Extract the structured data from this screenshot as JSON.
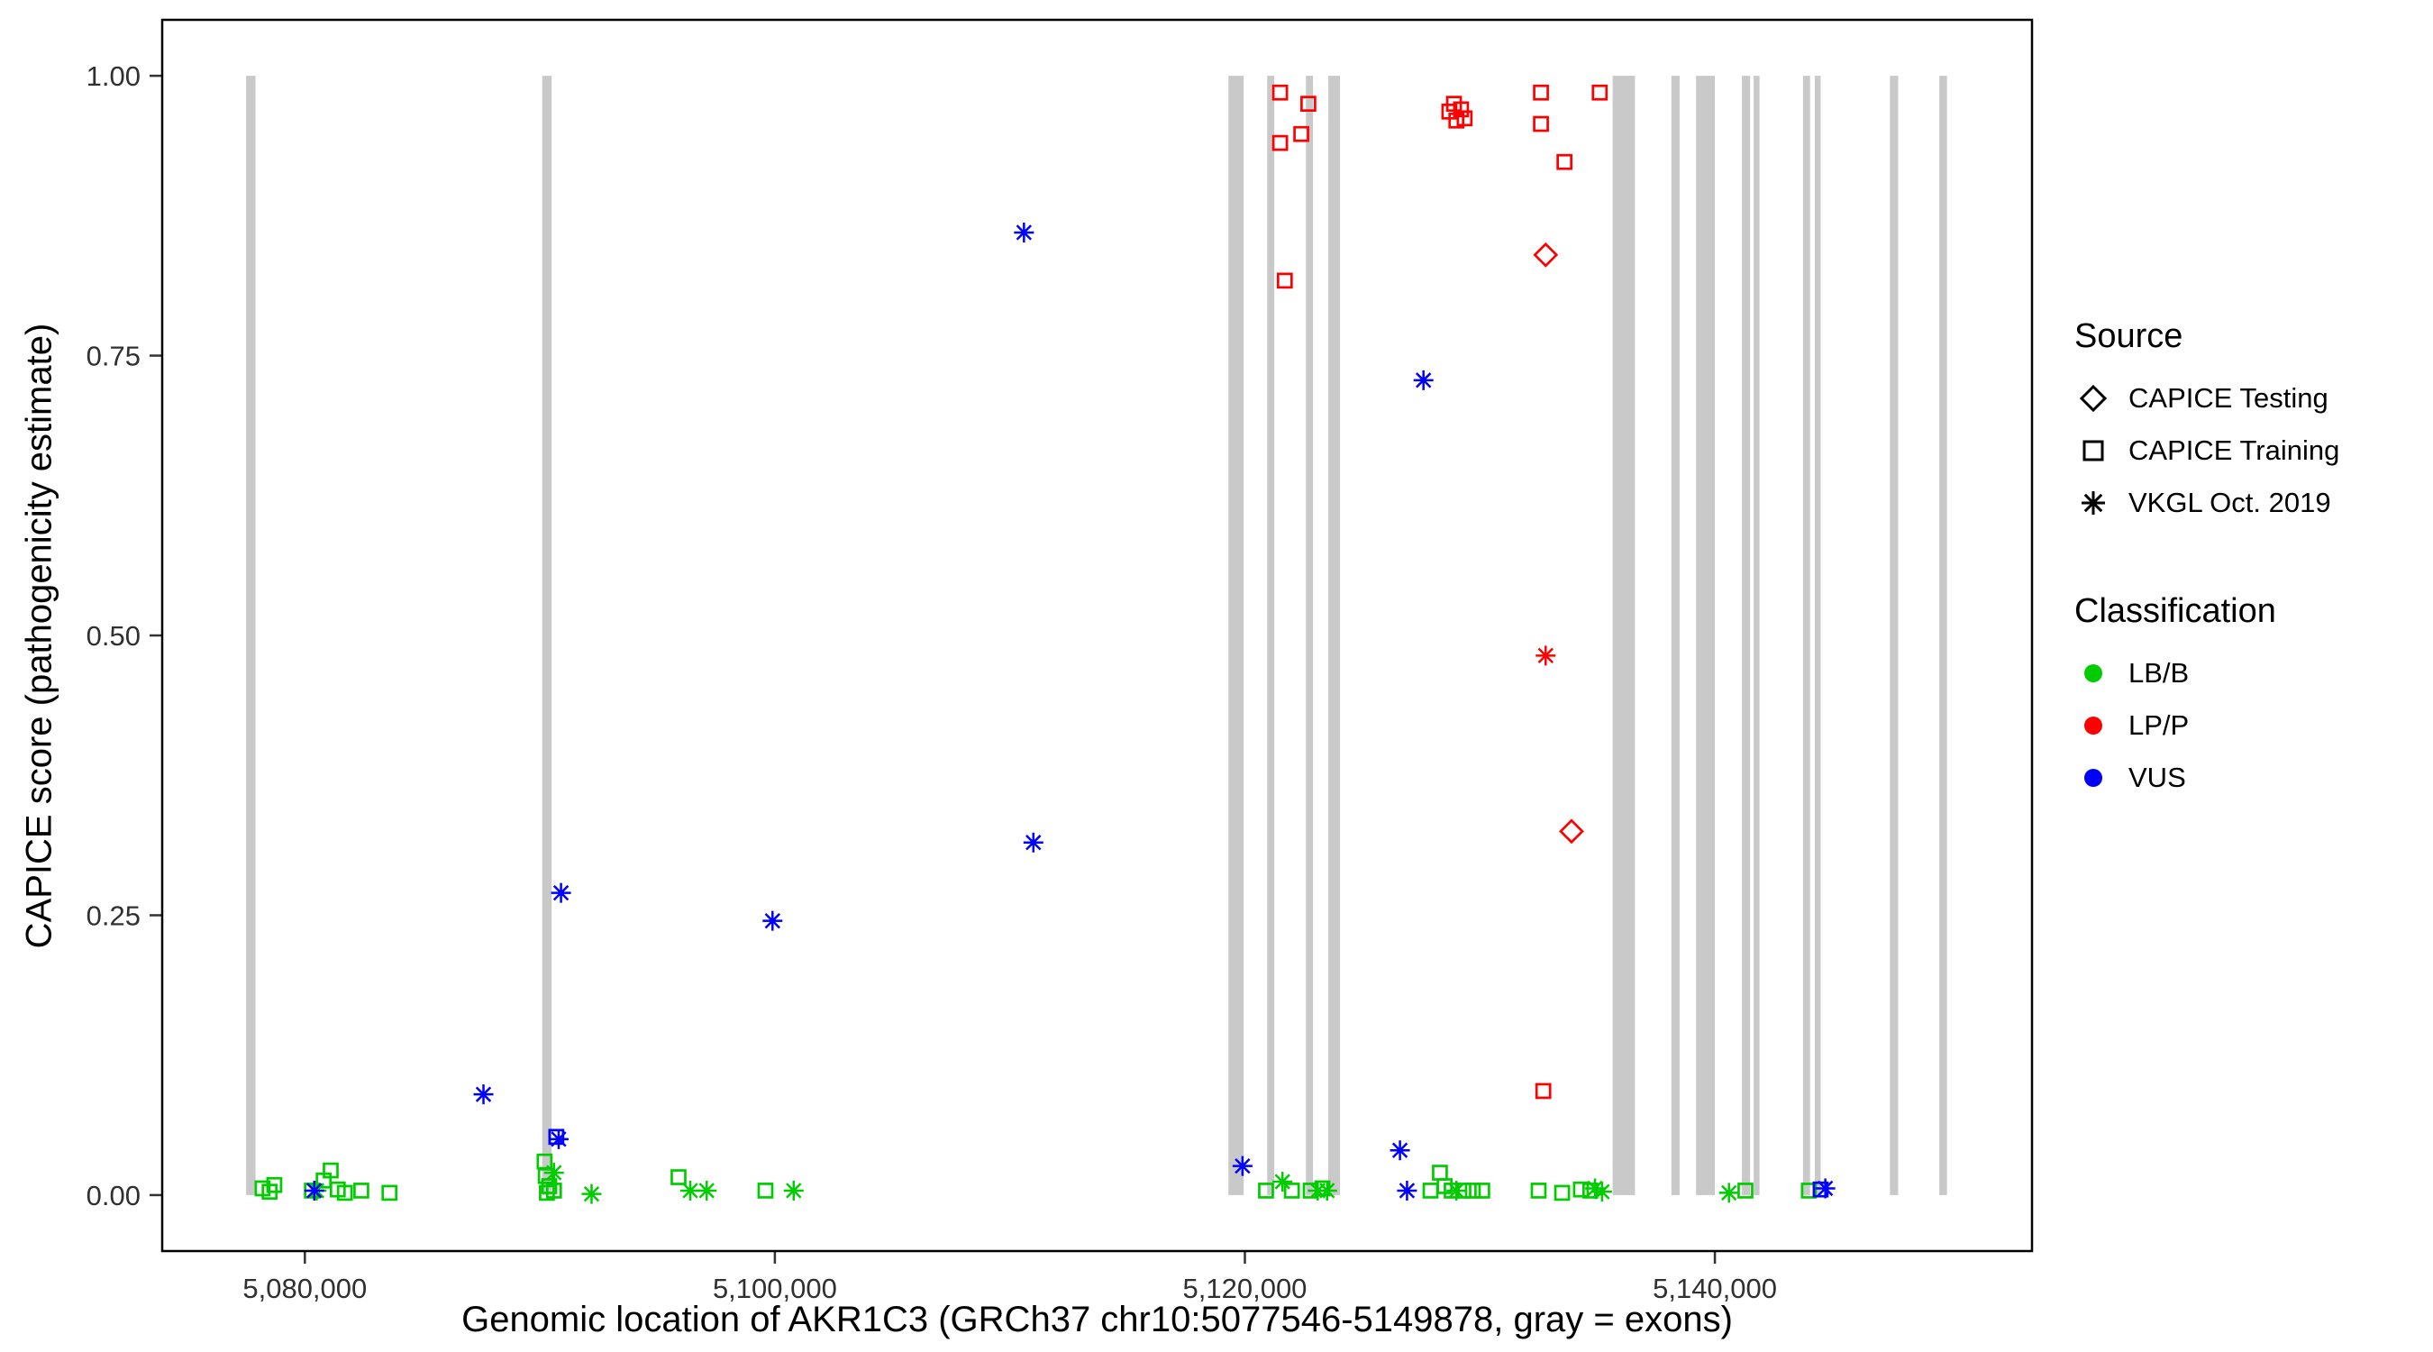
{
  "legend": {
    "source": {
      "title": "Source",
      "items": [
        {
          "shape": "diamond",
          "label": "CAPICE Testing"
        },
        {
          "shape": "square",
          "label": "CAPICE Training"
        },
        {
          "shape": "asterisk",
          "label": "VKGL Oct. 2019"
        }
      ]
    },
    "classification": {
      "title": "Classification",
      "items": [
        {
          "shape": "circle",
          "color": "#00CC00",
          "label": "LB/B"
        },
        {
          "shape": "circle",
          "color": "#FF0000",
          "label": "LP/P"
        },
        {
          "shape": "circle",
          "color": "#0000FF",
          "label": "VUS"
        }
      ]
    }
  },
  "chart_data": {
    "type": "scatter",
    "title": "",
    "xlabel": "Genomic location of AKR1C3 (GRCh37 chr10:5077546-5149878, gray = exons)",
    "ylabel": "CAPICE score (pathogenicity estimate)",
    "xlim": [
      5073929,
      5153495
    ],
    "ylim": [
      -0.05,
      1.05
    ],
    "grid": false,
    "legend_position": "right",
    "x_ticks": [
      {
        "value": 5080000,
        "label": "5,080,000"
      },
      {
        "value": 5100000,
        "label": "5,100,000"
      },
      {
        "value": 5120000,
        "label": "5,120,000"
      },
      {
        "value": 5140000,
        "label": "5,140,000"
      }
    ],
    "y_ticks": [
      {
        "value": 0.0,
        "label": "0.00"
      },
      {
        "value": 0.25,
        "label": "0.25"
      },
      {
        "value": 0.5,
        "label": "0.50"
      },
      {
        "value": 0.75,
        "label": "0.75"
      },
      {
        "value": 1.0,
        "label": "1.00"
      }
    ],
    "exon_color": "#C9C9C9",
    "colors": {
      "LB/B": "#00CC00",
      "LP/P": "#FF0000",
      "VUS": "#0000FF"
    },
    "shape_by_source": {
      "CAPICE Testing": "diamond",
      "CAPICE Training": "square",
      "VKGL Oct. 2019": "asterisk"
    },
    "exons": [
      [
        5077500,
        5077900
      ],
      [
        5090100,
        5090500
      ],
      [
        5119300,
        5119950
      ],
      [
        5120950,
        5121250
      ],
      [
        5122600,
        5122900
      ],
      [
        5123550,
        5124050
      ],
      [
        5135650,
        5136600
      ],
      [
        5138150,
        5138500
      ],
      [
        5139200,
        5140000
      ],
      [
        5141150,
        5141500
      ],
      [
        5141650,
        5141900
      ],
      [
        5143750,
        5144050
      ],
      [
        5144250,
        5144500
      ],
      [
        5147450,
        5147800
      ],
      [
        5149550,
        5149878
      ]
    ],
    "points": [
      {
        "x": 5078200,
        "y": 0.006,
        "source": "CAPICE Training",
        "classification": "LB/B"
      },
      {
        "x": 5078500,
        "y": 0.003,
        "source": "CAPICE Training",
        "classification": "LB/B"
      },
      {
        "x": 5078700,
        "y": 0.009,
        "source": "CAPICE Training",
        "classification": "LB/B"
      },
      {
        "x": 5080300,
        "y": 0.004,
        "source": "CAPICE Training",
        "classification": "LB/B"
      },
      {
        "x": 5080800,
        "y": 0.013,
        "source": "CAPICE Training",
        "classification": "LB/B"
      },
      {
        "x": 5081100,
        "y": 0.022,
        "source": "CAPICE Training",
        "classification": "LB/B"
      },
      {
        "x": 5081400,
        "y": 0.005,
        "source": "CAPICE Training",
        "classification": "LB/B"
      },
      {
        "x": 5081700,
        "y": 0.002,
        "source": "CAPICE Training",
        "classification": "LB/B"
      },
      {
        "x": 5082400,
        "y": 0.004,
        "source": "CAPICE Training",
        "classification": "LB/B"
      },
      {
        "x": 5083600,
        "y": 0.002,
        "source": "CAPICE Training",
        "classification": "LB/B"
      },
      {
        "x": 5090200,
        "y": 0.03,
        "source": "CAPICE Training",
        "classification": "LB/B"
      },
      {
        "x": 5090250,
        "y": 0.017,
        "source": "CAPICE Training",
        "classification": "LB/B"
      },
      {
        "x": 5090400,
        "y": 0.008,
        "source": "CAPICE Training",
        "classification": "LB/B"
      },
      {
        "x": 5090300,
        "y": 0.002,
        "source": "CAPICE Training",
        "classification": "LB/B"
      },
      {
        "x": 5090600,
        "y": 0.004,
        "source": "CAPICE Training",
        "classification": "LB/B"
      },
      {
        "x": 5095900,
        "y": 0.016,
        "source": "CAPICE Training",
        "classification": "LB/B"
      },
      {
        "x": 5099600,
        "y": 0.004,
        "source": "CAPICE Training",
        "classification": "LB/B"
      },
      {
        "x": 5120900,
        "y": 0.004,
        "source": "CAPICE Training",
        "classification": "LB/B"
      },
      {
        "x": 5122000,
        "y": 0.004,
        "source": "CAPICE Training",
        "classification": "LB/B"
      },
      {
        "x": 5122800,
        "y": 0.004,
        "source": "CAPICE Training",
        "classification": "LB/B"
      },
      {
        "x": 5123300,
        "y": 0.006,
        "source": "CAPICE Training",
        "classification": "LB/B"
      },
      {
        "x": 5127900,
        "y": 0.004,
        "source": "CAPICE Training",
        "classification": "LB/B"
      },
      {
        "x": 5128300,
        "y": 0.02,
        "source": "CAPICE Training",
        "classification": "LB/B"
      },
      {
        "x": 5128500,
        "y": 0.008,
        "source": "CAPICE Training",
        "classification": "LB/B"
      },
      {
        "x": 5128800,
        "y": 0.004,
        "source": "CAPICE Training",
        "classification": "LB/B"
      },
      {
        "x": 5129300,
        "y": 0.004,
        "source": "CAPICE Training",
        "classification": "LB/B"
      },
      {
        "x": 5129700,
        "y": 0.004,
        "source": "CAPICE Training",
        "classification": "LB/B"
      },
      {
        "x": 5130100,
        "y": 0.004,
        "source": "CAPICE Training",
        "classification": "LB/B"
      },
      {
        "x": 5132500,
        "y": 0.004,
        "source": "CAPICE Training",
        "classification": "LB/B"
      },
      {
        "x": 5133500,
        "y": 0.002,
        "source": "CAPICE Training",
        "classification": "LB/B"
      },
      {
        "x": 5134300,
        "y": 0.005,
        "source": "CAPICE Training",
        "classification": "LB/B"
      },
      {
        "x": 5134700,
        "y": 0.004,
        "source": "CAPICE Training",
        "classification": "LB/B"
      },
      {
        "x": 5141300,
        "y": 0.004,
        "source": "CAPICE Training",
        "classification": "LB/B"
      },
      {
        "x": 5144000,
        "y": 0.004,
        "source": "CAPICE Training",
        "classification": "LB/B"
      },
      {
        "x": 5080500,
        "y": 0.004,
        "source": "VKGL Oct. 2019",
        "classification": "LB/B"
      },
      {
        "x": 5090600,
        "y": 0.02,
        "source": "VKGL Oct. 2019",
        "classification": "LB/B"
      },
      {
        "x": 5092200,
        "y": 0.001,
        "source": "VKGL Oct. 2019",
        "classification": "LB/B"
      },
      {
        "x": 5096400,
        "y": 0.004,
        "source": "VKGL Oct. 2019",
        "classification": "LB/B"
      },
      {
        "x": 5097100,
        "y": 0.004,
        "source": "VKGL Oct. 2019",
        "classification": "LB/B"
      },
      {
        "x": 5100800,
        "y": 0.004,
        "source": "VKGL Oct. 2019",
        "classification": "LB/B"
      },
      {
        "x": 5121600,
        "y": 0.012,
        "source": "VKGL Oct. 2019",
        "classification": "LB/B"
      },
      {
        "x": 5123100,
        "y": 0.004,
        "source": "VKGL Oct. 2019",
        "classification": "LB/B"
      },
      {
        "x": 5123500,
        "y": 0.004,
        "source": "VKGL Oct. 2019",
        "classification": "LB/B"
      },
      {
        "x": 5129000,
        "y": 0.004,
        "source": "VKGL Oct. 2019",
        "classification": "LB/B"
      },
      {
        "x": 5134900,
        "y": 0.006,
        "source": "VKGL Oct. 2019",
        "classification": "LB/B"
      },
      {
        "x": 5135200,
        "y": 0.003,
        "source": "VKGL Oct. 2019",
        "classification": "LB/B"
      },
      {
        "x": 5140600,
        "y": 0.002,
        "source": "VKGL Oct. 2019",
        "classification": "LB/B"
      },
      {
        "x": 5090700,
        "y": 0.052,
        "source": "CAPICE Training",
        "classification": "VUS"
      },
      {
        "x": 5144500,
        "y": 0.005,
        "source": "CAPICE Training",
        "classification": "VUS"
      },
      {
        "x": 5110600,
        "y": 0.86,
        "source": "VKGL Oct. 2019",
        "classification": "VUS"
      },
      {
        "x": 5127600,
        "y": 0.728,
        "source": "VKGL Oct. 2019",
        "classification": "VUS"
      },
      {
        "x": 5111000,
        "y": 0.315,
        "source": "VKGL Oct. 2019",
        "classification": "VUS"
      },
      {
        "x": 5090900,
        "y": 0.27,
        "source": "VKGL Oct. 2019",
        "classification": "VUS"
      },
      {
        "x": 5099900,
        "y": 0.245,
        "source": "VKGL Oct. 2019",
        "classification": "VUS"
      },
      {
        "x": 5087600,
        "y": 0.09,
        "source": "VKGL Oct. 2019",
        "classification": "VUS"
      },
      {
        "x": 5090800,
        "y": 0.05,
        "source": "VKGL Oct. 2019",
        "classification": "VUS"
      },
      {
        "x": 5119900,
        "y": 0.026,
        "source": "VKGL Oct. 2019",
        "classification": "VUS"
      },
      {
        "x": 5126600,
        "y": 0.04,
        "source": "VKGL Oct. 2019",
        "classification": "VUS"
      },
      {
        "x": 5080400,
        "y": 0.004,
        "source": "VKGL Oct. 2019",
        "classification": "VUS"
      },
      {
        "x": 5126900,
        "y": 0.004,
        "source": "VKGL Oct. 2019",
        "classification": "VUS"
      },
      {
        "x": 5144700,
        "y": 0.006,
        "source": "VKGL Oct. 2019",
        "classification": "VUS"
      },
      {
        "x": 5121500,
        "y": 0.985,
        "source": "CAPICE Training",
        "classification": "LP/P"
      },
      {
        "x": 5121500,
        "y": 0.94,
        "source": "CAPICE Training",
        "classification": "LP/P"
      },
      {
        "x": 5122700,
        "y": 0.975,
        "source": "CAPICE Training",
        "classification": "LP/P"
      },
      {
        "x": 5122400,
        "y": 0.948,
        "source": "CAPICE Training",
        "classification": "LP/P"
      },
      {
        "x": 5121700,
        "y": 0.817,
        "source": "CAPICE Training",
        "classification": "LP/P"
      },
      {
        "x": 5128700,
        "y": 0.968,
        "source": "CAPICE Training",
        "classification": "LP/P"
      },
      {
        "x": 5128900,
        "y": 0.975,
        "source": "CAPICE Training",
        "classification": "LP/P"
      },
      {
        "x": 5129000,
        "y": 0.96,
        "source": "CAPICE Training",
        "classification": "LP/P"
      },
      {
        "x": 5129200,
        "y": 0.97,
        "source": "CAPICE Training",
        "classification": "LP/P"
      },
      {
        "x": 5129350,
        "y": 0.962,
        "source": "CAPICE Training",
        "classification": "LP/P"
      },
      {
        "x": 5132600,
        "y": 0.985,
        "source": "CAPICE Training",
        "classification": "LP/P"
      },
      {
        "x": 5132600,
        "y": 0.957,
        "source": "CAPICE Training",
        "classification": "LP/P"
      },
      {
        "x": 5133600,
        "y": 0.923,
        "source": "CAPICE Training",
        "classification": "LP/P"
      },
      {
        "x": 5135100,
        "y": 0.985,
        "source": "CAPICE Training",
        "classification": "LP/P"
      },
      {
        "x": 5132700,
        "y": 0.093,
        "source": "CAPICE Training",
        "classification": "LP/P"
      },
      {
        "x": 5132800,
        "y": 0.84,
        "source": "CAPICE Testing",
        "classification": "LP/P"
      },
      {
        "x": 5133900,
        "y": 0.325,
        "source": "CAPICE Testing",
        "classification": "LP/P"
      },
      {
        "x": 5132800,
        "y": 0.482,
        "source": "VKGL Oct. 2019",
        "classification": "LP/P"
      }
    ]
  }
}
